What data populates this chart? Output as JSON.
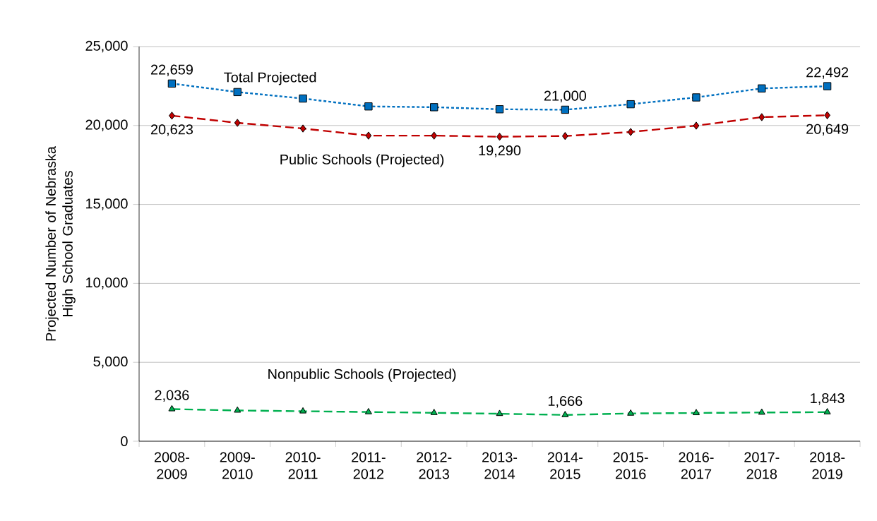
{
  "chart_data": {
    "type": "line",
    "ylabel": "Projected Number of Nebraska High School Graduates",
    "categories": [
      "2008-2009",
      "2009-2010",
      "2010-2011",
      "2011-2012",
      "2012-2013",
      "2013-2014",
      "2014-2015",
      "2015-2016",
      "2016-2017",
      "2017-2018",
      "2018-2019"
    ],
    "series": [
      {
        "name": "Total Projected",
        "color": "#0070c0",
        "marker": "square",
        "line_style": "dotted",
        "values": [
          22659,
          22120,
          21710,
          21210,
          21160,
          21030,
          21000,
          21350,
          21780,
          22350,
          22492
        ],
        "value_labels": [
          "22,659",
          null,
          null,
          null,
          null,
          null,
          "21,000",
          null,
          null,
          null,
          "22,492"
        ]
      },
      {
        "name": "Public Schools (Projected)",
        "color": "#c00000",
        "marker": "diamond",
        "line_style": "dashed",
        "values": [
          20623,
          20170,
          19810,
          19360,
          19360,
          19290,
          19334,
          19590,
          19990,
          20530,
          20649
        ],
        "value_labels": [
          "20,623",
          null,
          null,
          null,
          null,
          "19,290",
          null,
          null,
          null,
          null,
          "20,649"
        ]
      },
      {
        "name": "Nonpublic Schools (Projected)",
        "color": "#00b050",
        "marker": "triangle",
        "line_style": "dashed",
        "values": [
          2036,
          1950,
          1900,
          1850,
          1800,
          1740,
          1666,
          1760,
          1790,
          1820,
          1843
        ],
        "value_labels": [
          "2,036",
          null,
          null,
          null,
          null,
          null,
          "1,666",
          null,
          null,
          null,
          "1,843"
        ]
      }
    ],
    "ylim": [
      0,
      25000
    ],
    "yticks": [
      0,
      {
        "value": 5000,
        "label": "5,000"
      },
      {
        "value": 10000,
        "label": "10,000"
      },
      {
        "value": 15000,
        "label": "15,000"
      },
      {
        "value": 20000,
        "label": "20,000"
      },
      {
        "value": 25000,
        "label": "25,000"
      }
    ],
    "grid": "y",
    "legend": false
  }
}
